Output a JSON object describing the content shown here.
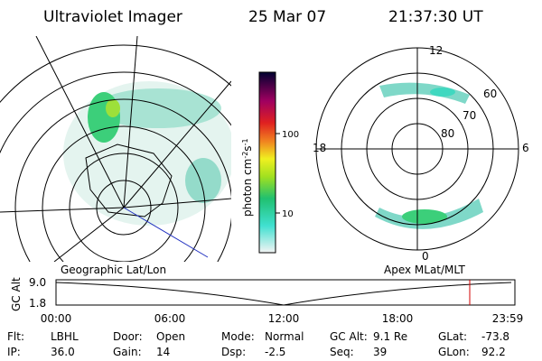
{
  "header": {
    "instrument": "Ultraviolet Imager",
    "date": "25 Mar 07",
    "time": "21:37:30 UT"
  },
  "colorbar": {
    "ticks": [
      "100",
      "10"
    ],
    "unit": "photon cm",
    "exp1": "-2",
    "unit2": "s",
    "exp2": "-1"
  },
  "polar_plot": {
    "mlt_labels": [
      "12",
      "18",
      "6",
      "0"
    ],
    "lat_labels": [
      "60",
      "70",
      "80"
    ]
  },
  "map_labels": {
    "left": "Geographic Lat/Lon",
    "right": "Apex MLat/MLT"
  },
  "altitude_plot": {
    "axis_label": "GC Alt",
    "yticks": [
      "9.0",
      "1.8"
    ],
    "xticks": [
      "00:00",
      "06:00",
      "12:00",
      "18:00",
      "23:59"
    ]
  },
  "status": {
    "rows": [
      [
        {
          "label": "Flt:",
          "value": "LBHL"
        },
        {
          "label": "Door:",
          "value": "Open"
        },
        {
          "label": "Mode:",
          "value": "Normal"
        },
        {
          "label": "GC Alt:",
          "value": "9.1 Re"
        },
        {
          "label": "GLat:",
          "value": "-73.8"
        }
      ],
      [
        {
          "label": "IP:",
          "value": "36.0"
        },
        {
          "label": "Gain:",
          "value": "14"
        },
        {
          "label": "Dsp:",
          "value": "-2.5"
        },
        {
          "label": "Seq:",
          "value": "39"
        },
        {
          "label": "GLon:",
          "value": "92.2"
        }
      ]
    ]
  }
}
